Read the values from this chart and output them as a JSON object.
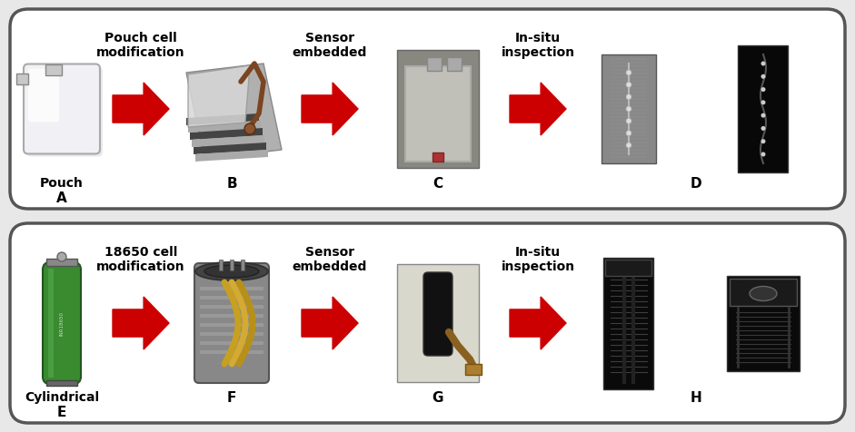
{
  "fig_width": 9.41,
  "fig_height": 4.76,
  "dpi": 100,
  "bg_color": "#e8e8e8",
  "row_bg": "#ffffff",
  "row_edge": "#444444",
  "arrow_color": "#cc0000",
  "text_color": "#000000",
  "label_fontsize": 8.5,
  "letter_fontsize": 11,
  "bold_label_fontsize": 10,
  "row1": {
    "label_arrow1": "Pouch cell\nmodification",
    "label_arrow2": "Sensor\nembedded",
    "label_arrow3": "In-situ\ninspection",
    "item_A_label": "Pouch",
    "item_A_letter": "A",
    "item_B_letter": "B",
    "item_C_letter": "C",
    "item_D_letter": "D"
  },
  "row2": {
    "label_arrow1": "18650 cell\nmodification",
    "label_arrow2": "Sensor\nembedded",
    "label_arrow3": "In-situ\ninspection",
    "item_E_label": "Cylindrical",
    "item_E_letter": "E",
    "item_F_letter": "F",
    "item_G_letter": "G",
    "item_H_letter": "H"
  }
}
